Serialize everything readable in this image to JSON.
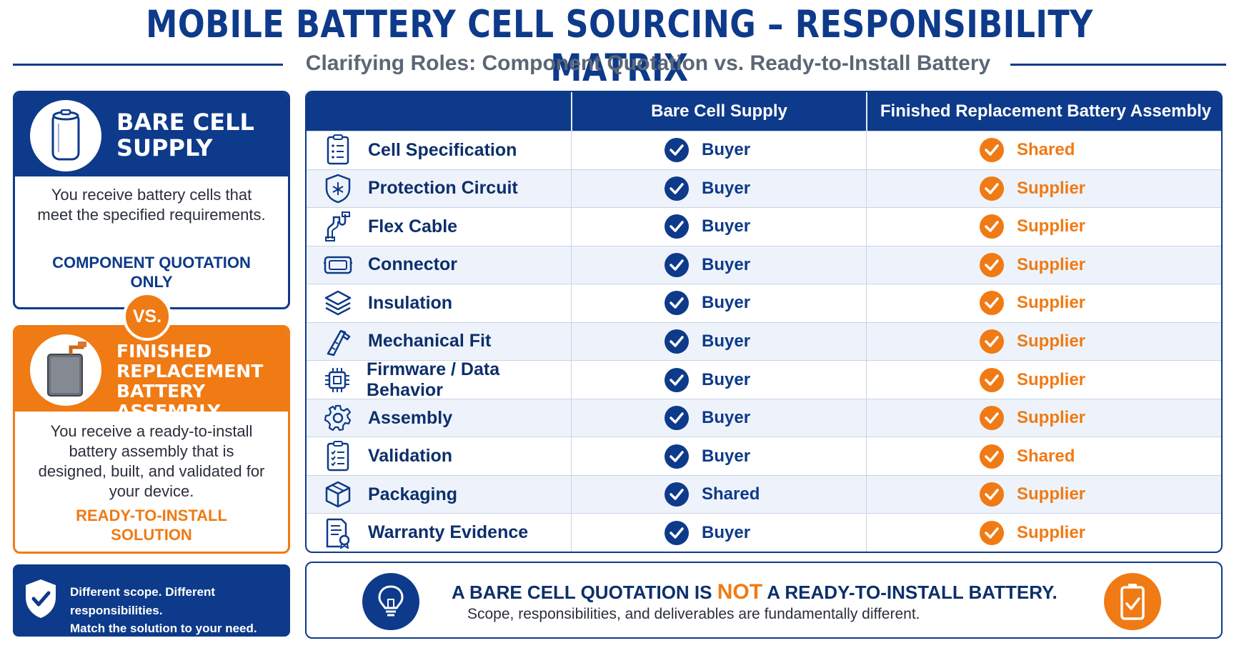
{
  "title": "MOBILE BATTERY CELL SOURCING – RESPONSIBILITY MATRIX",
  "subtitle": "Clarifying Roles: Component Quotation vs. Ready-to-Install Battery",
  "colors": {
    "navy": "#0d3a8a",
    "orange": "#f07a14"
  },
  "left_panel": {
    "bare": {
      "title_line1": "BARE CELL",
      "title_line2": "SUPPLY",
      "icon": "battery-cell-icon",
      "description": "You receive battery cells that meet the specified requirements.",
      "tag": "COMPONENT QUOTATION ONLY"
    },
    "vs_label": "VS.",
    "finished": {
      "title_line1": "FINISHED",
      "title_line2": "REPLACEMENT",
      "title_line3": "BATTERY ASSEMBLY",
      "icon": "battery-pack-icon",
      "description": "You receive a ready-to-install battery assembly that is designed, built, and validated for your device.",
      "tag": "READY-TO-INSTALL SOLUTION"
    },
    "note": {
      "icon": "shield-check-icon",
      "line1": "Different scope. Different responsibilities.",
      "line2": "Match the solution to your need."
    }
  },
  "table": {
    "headers": [
      "",
      "Bare Cell Supply",
      "Finished Replacement Battery Assembly"
    ],
    "rows": [
      {
        "item": "Cell Specification",
        "icon": "checklist-icon",
        "bare": "Buyer",
        "finished": "Shared"
      },
      {
        "item": "Protection Circuit",
        "icon": "circuit-shield-icon",
        "bare": "Buyer",
        "finished": "Supplier"
      },
      {
        "item": "Flex Cable",
        "icon": "flex-cable-icon",
        "bare": "Buyer",
        "finished": "Supplier"
      },
      {
        "item": "Connector",
        "icon": "connector-icon",
        "bare": "Buyer",
        "finished": "Supplier"
      },
      {
        "item": "Insulation",
        "icon": "layers-icon",
        "bare": "Buyer",
        "finished": "Supplier"
      },
      {
        "item": "Mechanical Fit",
        "icon": "caliper-icon",
        "bare": "Buyer",
        "finished": "Supplier"
      },
      {
        "item": "Firmware / Data Behavior",
        "icon": "chip-icon",
        "bare": "Buyer",
        "finished": "Supplier"
      },
      {
        "item": "Assembly",
        "icon": "gear-icon",
        "bare": "Buyer",
        "finished": "Supplier"
      },
      {
        "item": "Validation",
        "icon": "clipboard-check-icon",
        "bare": "Buyer",
        "finished": "Shared"
      },
      {
        "item": "Packaging",
        "icon": "box-icon",
        "bare": "Shared",
        "finished": "Supplier"
      },
      {
        "item": "Warranty Evidence",
        "icon": "certificate-icon",
        "bare": "Buyer",
        "finished": "Supplier"
      }
    ]
  },
  "banner": {
    "bulb_icon": "lightbulb-icon",
    "battery_icon": "battery-check-icon",
    "main_before": "A BARE CELL QUOTATION IS ",
    "main_emphasis": "NOT",
    "main_after": " A READY-TO-INSTALL BATTERY.",
    "sub": "Scope, responsibilities, and deliverables are fundamentally different."
  }
}
